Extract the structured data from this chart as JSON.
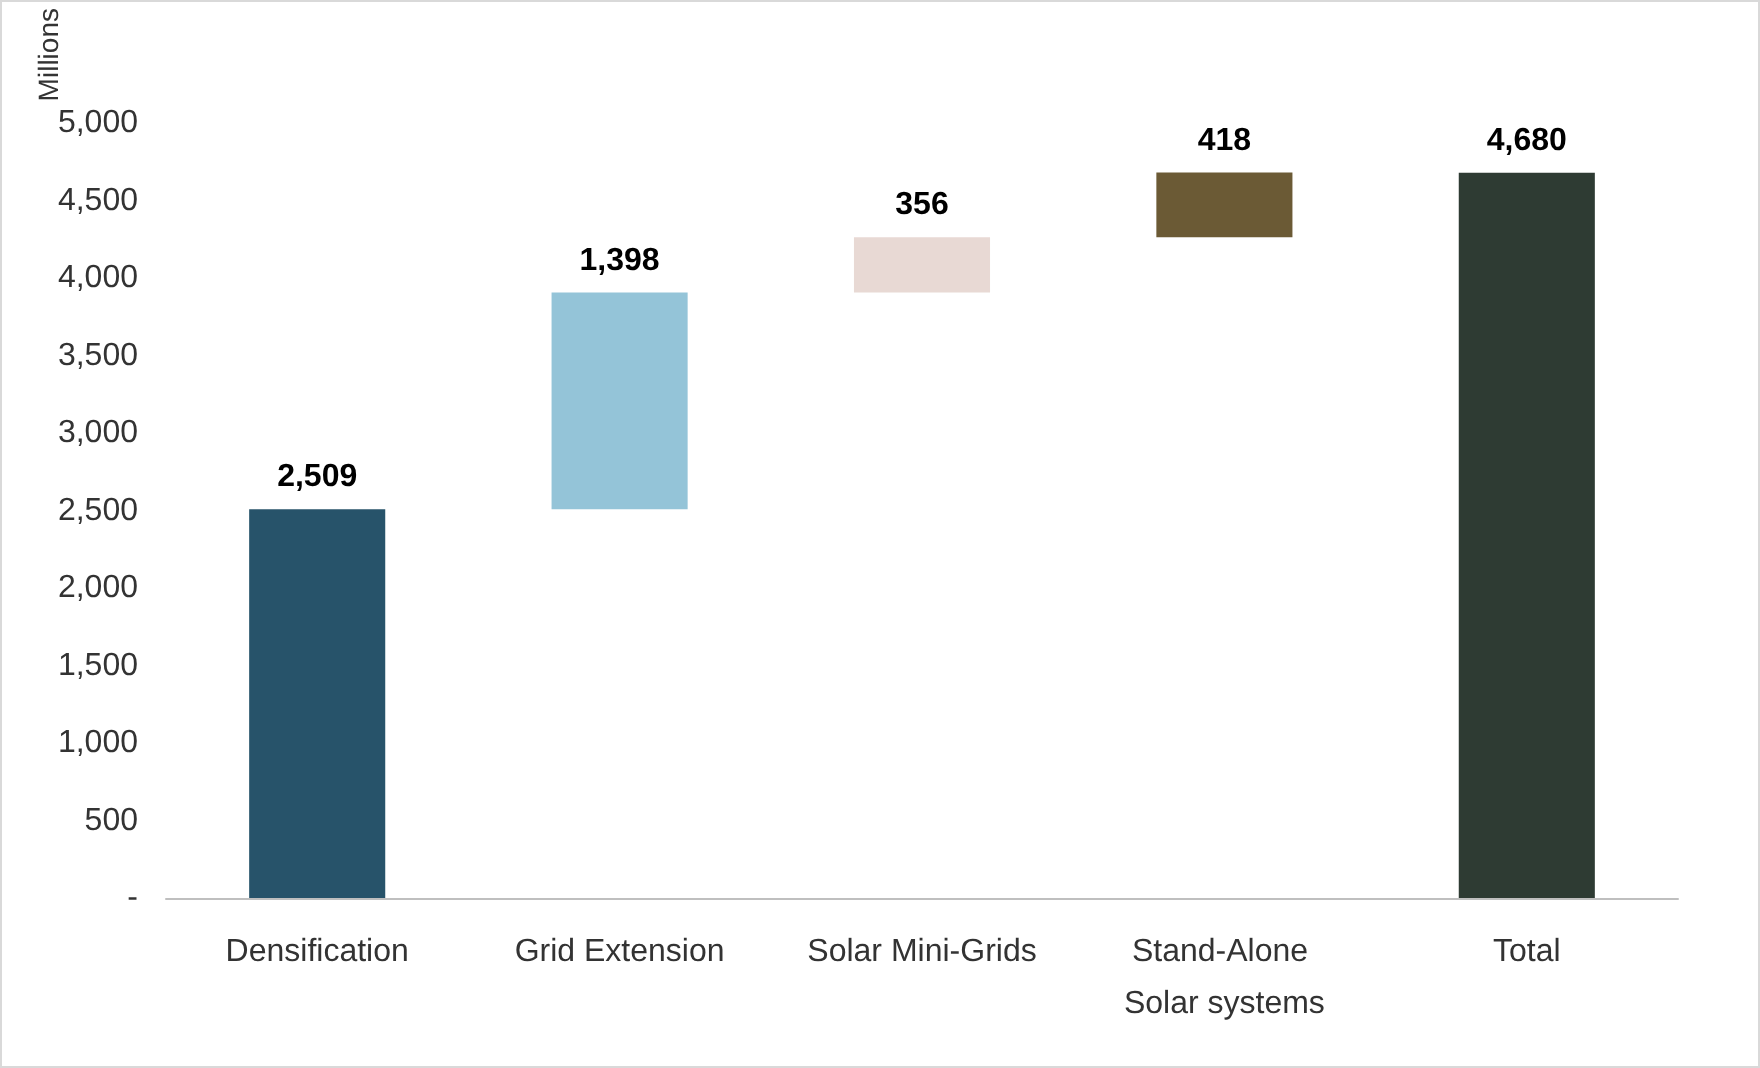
{
  "chart_data": {
    "type": "bar",
    "ylabel": "Millions",
    "categories": [
      "Densification",
      "Grid Extension",
      "Solar Mini-Grids",
      "Stand-Alone Solar systems",
      "Total"
    ],
    "values": [
      2509,
      1398,
      356,
      418,
      4680
    ],
    "base": [
      0,
      2509,
      3907,
      4263,
      0
    ],
    "colors": [
      "#27536a",
      "#94c4d8",
      "#e8d9d4",
      "#6b5a35",
      "#2e3b33"
    ],
    "value_labels": [
      "2,509",
      "1,398",
      "356",
      "418",
      "4,680"
    ],
    "ylim": [
      0,
      5000
    ],
    "yticks": [
      {
        "value": 0,
        "label": "-"
      },
      500,
      {
        "value": 1000,
        "label": "1,000"
      },
      {
        "value": 1500,
        "label": "1,500"
      },
      {
        "value": 2000,
        "label": "2,000"
      },
      {
        "value": 2500,
        "label": "2,500"
      },
      {
        "value": 3000,
        "label": "3,000"
      },
      {
        "value": 3500,
        "label": "3,500"
      },
      {
        "value": 4000,
        "label": "4,000"
      },
      {
        "value": 4500,
        "label": "4,500"
      },
      {
        "value": 5000,
        "label": "5,000"
      }
    ],
    "grid": false
  }
}
